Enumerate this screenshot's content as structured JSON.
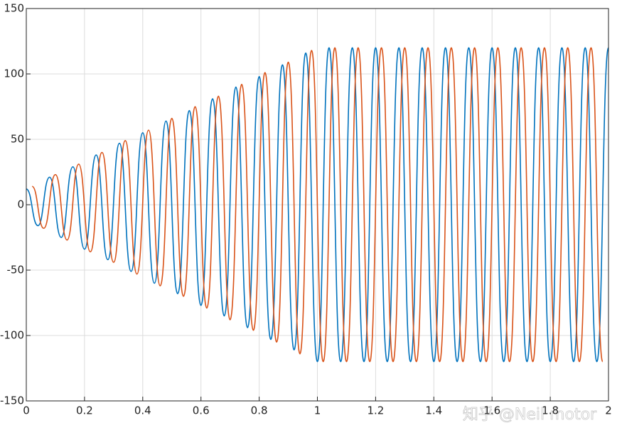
{
  "chart_data": {
    "type": "line",
    "xlim": [
      0,
      2
    ],
    "xticks": [
      0,
      0.2,
      0.4,
      0.6,
      0.8,
      1,
      1.2,
      1.4,
      1.6,
      1.8,
      2
    ],
    "ylim": [
      -150,
      150
    ],
    "yticks": [
      -150,
      -100,
      -50,
      0,
      50,
      100,
      150
    ],
    "grid": true,
    "watermark": "知乎 @Neil motor",
    "series": [
      {
        "color": "#0072bd",
        "x": [
          0,
          0.04,
          0.08,
          0.12,
          0.16,
          0.2,
          0.24,
          0.28,
          0.32,
          0.36,
          0.4,
          0.44,
          0.48,
          0.52,
          0.56,
          0.6,
          0.64,
          0.68,
          0.72,
          0.76,
          0.8,
          0.84,
          0.88,
          0.92,
          0.96,
          1,
          1.04,
          1.08,
          1.12,
          1.16,
          1.2,
          1.24,
          1.28,
          1.32,
          1.36,
          1.4,
          1.44,
          1.48,
          1.52,
          1.56,
          1.6,
          1.64,
          1.68,
          1.72,
          1.76,
          1.8,
          1.84,
          1.88,
          1.92,
          1.96,
          2
        ],
        "values": [
          12,
          -16,
          21,
          -25,
          29,
          -34,
          38,
          -42,
          47,
          -51,
          55,
          -60,
          64,
          -68,
          72,
          -77,
          81,
          -85,
          90,
          -94,
          98,
          -103,
          107,
          -111,
          116,
          -120,
          120,
          -120,
          120,
          -120,
          120,
          -120,
          120,
          -120,
          120,
          -120,
          120,
          -120,
          120,
          -120,
          120,
          -120,
          120,
          -120,
          120,
          -120,
          120,
          -120,
          120,
          -120,
          120
        ]
      },
      {
        "color": "#d95319",
        "x": [
          0.02,
          0.06,
          0.1,
          0.14,
          0.18,
          0.22,
          0.26,
          0.3,
          0.34,
          0.38,
          0.42,
          0.46,
          0.5,
          0.54,
          0.58,
          0.62,
          0.66,
          0.7,
          0.74,
          0.78,
          0.82,
          0.86,
          0.9,
          0.94,
          0.98,
          1.02,
          1.06,
          1.1,
          1.14,
          1.18,
          1.22,
          1.26,
          1.3,
          1.34,
          1.38,
          1.42,
          1.46,
          1.5,
          1.54,
          1.58,
          1.62,
          1.66,
          1.7,
          1.74,
          1.78,
          1.82,
          1.86,
          1.9,
          1.94,
          1.98
        ],
        "values": [
          14,
          -18,
          23,
          -27,
          31,
          -36,
          40,
          -44,
          49,
          -53,
          57,
          -62,
          66,
          -70,
          75,
          -79,
          83,
          -88,
          92,
          -96,
          101,
          -105,
          109,
          -114,
          118,
          -120,
          120,
          -120,
          120,
          -120,
          120,
          -120,
          120,
          -120,
          120,
          -120,
          120,
          -120,
          120,
          -120,
          120,
          -120,
          120,
          -120,
          120,
          -120,
          120,
          -120,
          120,
          -120
        ]
      }
    ]
  }
}
